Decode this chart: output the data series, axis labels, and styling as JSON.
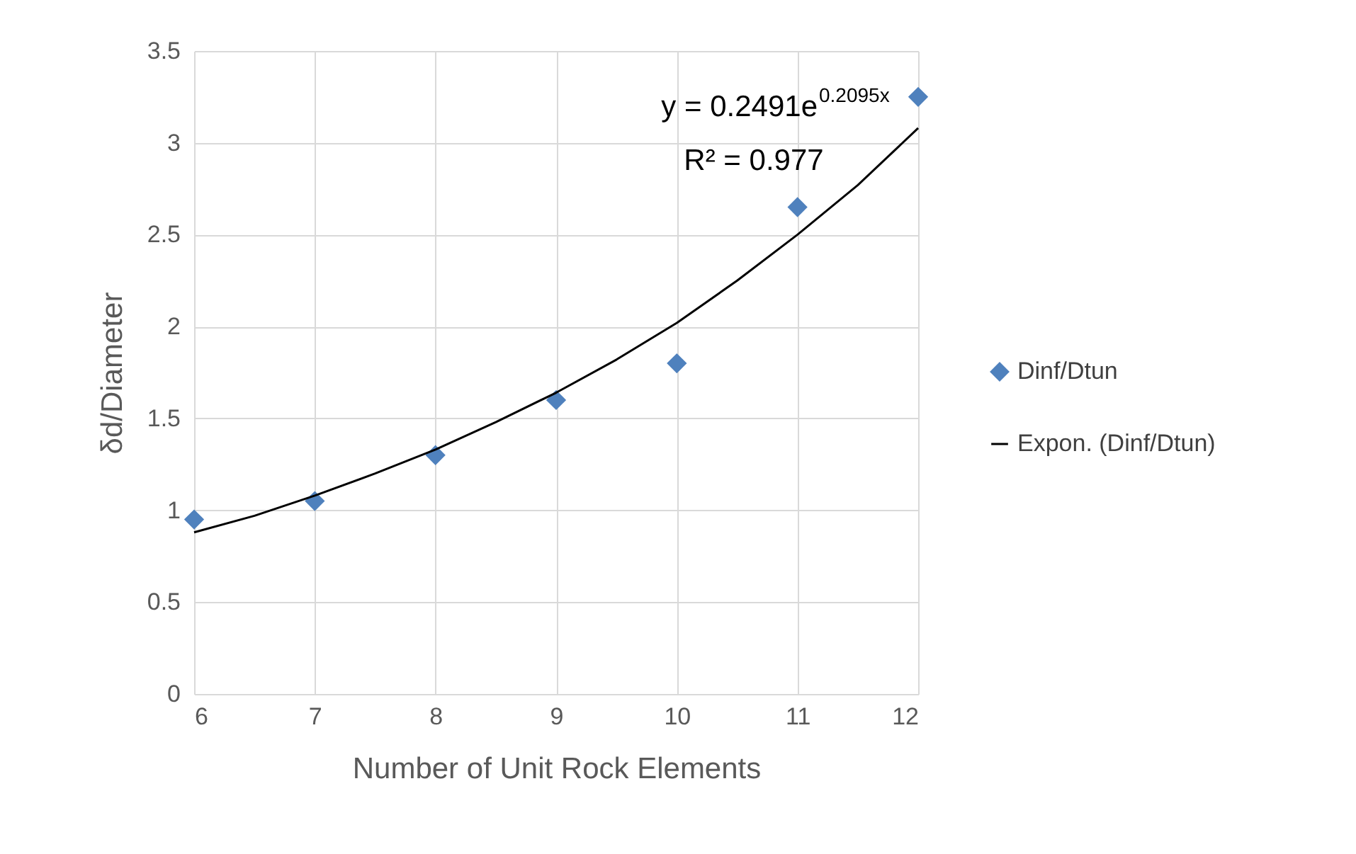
{
  "chart_data": {
    "type": "scatter",
    "xlabel": "Number of Unit Rock Elements",
    "ylabel": "δd/Diameter",
    "xlim": [
      6,
      12
    ],
    "xticks": [
      6,
      7,
      8,
      9,
      10,
      11,
      12
    ],
    "ylim": [
      0,
      3.5
    ],
    "yticks": [
      0,
      0.5,
      1,
      1.5,
      2,
      2.5,
      3,
      3.5
    ],
    "grid": true,
    "legend": "right",
    "annotations": [
      "y = 0.2491e$^{0.2095x}$",
      "R² = 0.977"
    ],
    "series": [
      {
        "name": "Dinf/Dtun",
        "marker": "diamond",
        "color": "#4f81bd",
        "x": [
          6,
          7,
          8,
          9,
          10,
          11,
          12
        ],
        "values": [
          0.95,
          1.05,
          1.3,
          1.6,
          1.8,
          2.65,
          3.25
        ]
      },
      {
        "name": "Expon. (Dinf/Dtun)",
        "type": "line",
        "color": "#000000",
        "x": [
          6,
          6.5,
          7,
          7.5,
          8,
          8.5,
          9,
          9.5,
          10,
          10.5,
          11,
          11.5,
          12
        ],
        "values": [
          0.88,
          0.97,
          1.08,
          1.2,
          1.33,
          1.48,
          1.64,
          1.82,
          2.02,
          2.25,
          2.5,
          2.77,
          3.08
        ]
      }
    ]
  }
}
